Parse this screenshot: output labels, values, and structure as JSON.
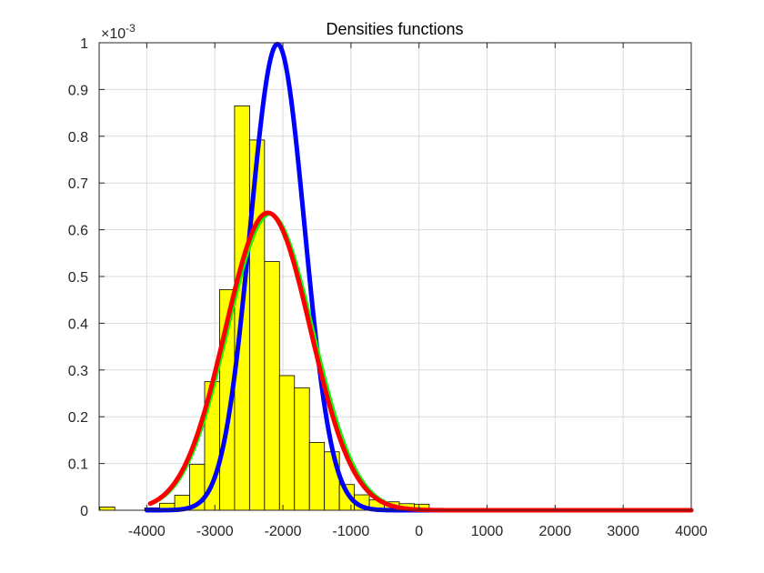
{
  "chart_data": {
    "type": "bar",
    "title": "Densities functions",
    "xlabel": "",
    "ylabel": "",
    "exponent_label": {
      "base": "×10",
      "power": "-3"
    },
    "xlim": [
      -4700,
      4000
    ],
    "ylim": [
      0,
      1
    ],
    "grid": true,
    "x_ticks": [
      -4000,
      -3000,
      -2000,
      -1000,
      0,
      1000,
      2000,
      3000,
      4000
    ],
    "y_ticks": [
      0,
      0.1,
      0.2,
      0.3,
      0.4,
      0.5,
      0.6,
      0.7,
      0.8,
      0.9,
      1
    ],
    "x_tick_labels": [
      "-4000",
      "-3000",
      "-2000",
      "-1000",
      "0",
      "1000",
      "2000",
      "3000",
      "4000"
    ],
    "y_tick_labels": [
      "0",
      "0.1",
      "0.2",
      "0.3",
      "0.4",
      "0.5",
      "0.6",
      "0.7",
      "0.8",
      "0.9",
      "1"
    ],
    "histogram": {
      "color": "#ffff00",
      "edge_color": "#000000",
      "bin_width": 220,
      "centers": [
        -4580,
        -4360,
        -4140,
        -3920,
        -3700,
        -3480,
        -3260,
        -3040,
        -2820,
        -2600,
        -2380,
        -2160,
        -1940,
        -1720,
        -1500,
        -1280,
        -1060,
        -840,
        -620,
        -400,
        -180,
        40,
        260
      ],
      "values": [
        0.007,
        0,
        0,
        0.005,
        0.015,
        0.032,
        0.098,
        0.275,
        0.472,
        0.865,
        0.792,
        0.532,
        0.288,
        0.262,
        0.145,
        0.125,
        0.055,
        0.033,
        0.022,
        0.018,
        0.014,
        0.013,
        0
      ]
    },
    "series": [
      {
        "color": "#0000ff",
        "kind": "normal",
        "mean": -2080,
        "std": 400,
        "x_start": -4000,
        "x_end": 4000
      },
      {
        "color": "#00ff00",
        "kind": "normal",
        "mean": -2180,
        "std": 630,
        "x_start": -3950,
        "x_end": 4000
      },
      {
        "color": "#ff0000",
        "kind": "normal",
        "mean": -2220,
        "std": 627,
        "x_start": -3950,
        "x_end": 4000
      }
    ]
  }
}
